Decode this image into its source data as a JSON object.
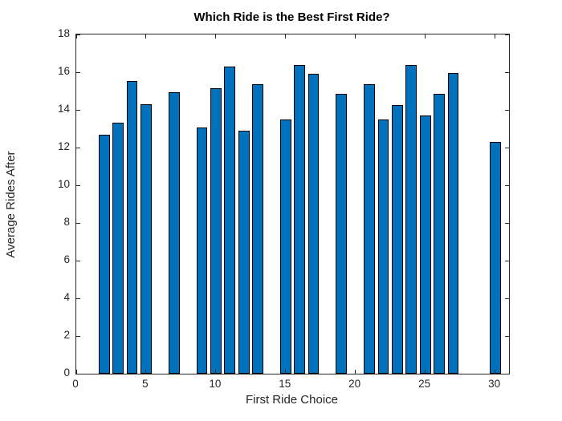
{
  "chart_data": {
    "type": "bar",
    "title": "Which Ride is the Best First Ride?",
    "xlabel": "First Ride Choice",
    "ylabel": "Average Rides After",
    "x": [
      2,
      3,
      4,
      5,
      7,
      9,
      10,
      11,
      12,
      13,
      15,
      16,
      17,
      19,
      21,
      22,
      23,
      24,
      25,
      26,
      27,
      30
    ],
    "values": [
      12.7,
      13.3,
      15.55,
      14.3,
      14.95,
      13.05,
      15.15,
      16.3,
      12.9,
      15.35,
      13.5,
      16.4,
      15.9,
      14.85,
      15.35,
      13.5,
      14.25,
      16.4,
      13.7,
      14.85,
      15.95,
      12.3
    ],
    "bar_width": 0.8,
    "xlim": [
      0,
      31
    ],
    "ylim": [
      0,
      18
    ],
    "x_ticks": [
      0,
      5,
      10,
      15,
      20,
      25,
      30
    ],
    "y_ticks": [
      0,
      2,
      4,
      6,
      8,
      10,
      12,
      14,
      16,
      18
    ],
    "grid": false,
    "legend_position": "none",
    "bar_color": "#0072BD",
    "bar_edge_color": "#000000",
    "axis_color": "#262626",
    "tick_direction": "in"
  }
}
